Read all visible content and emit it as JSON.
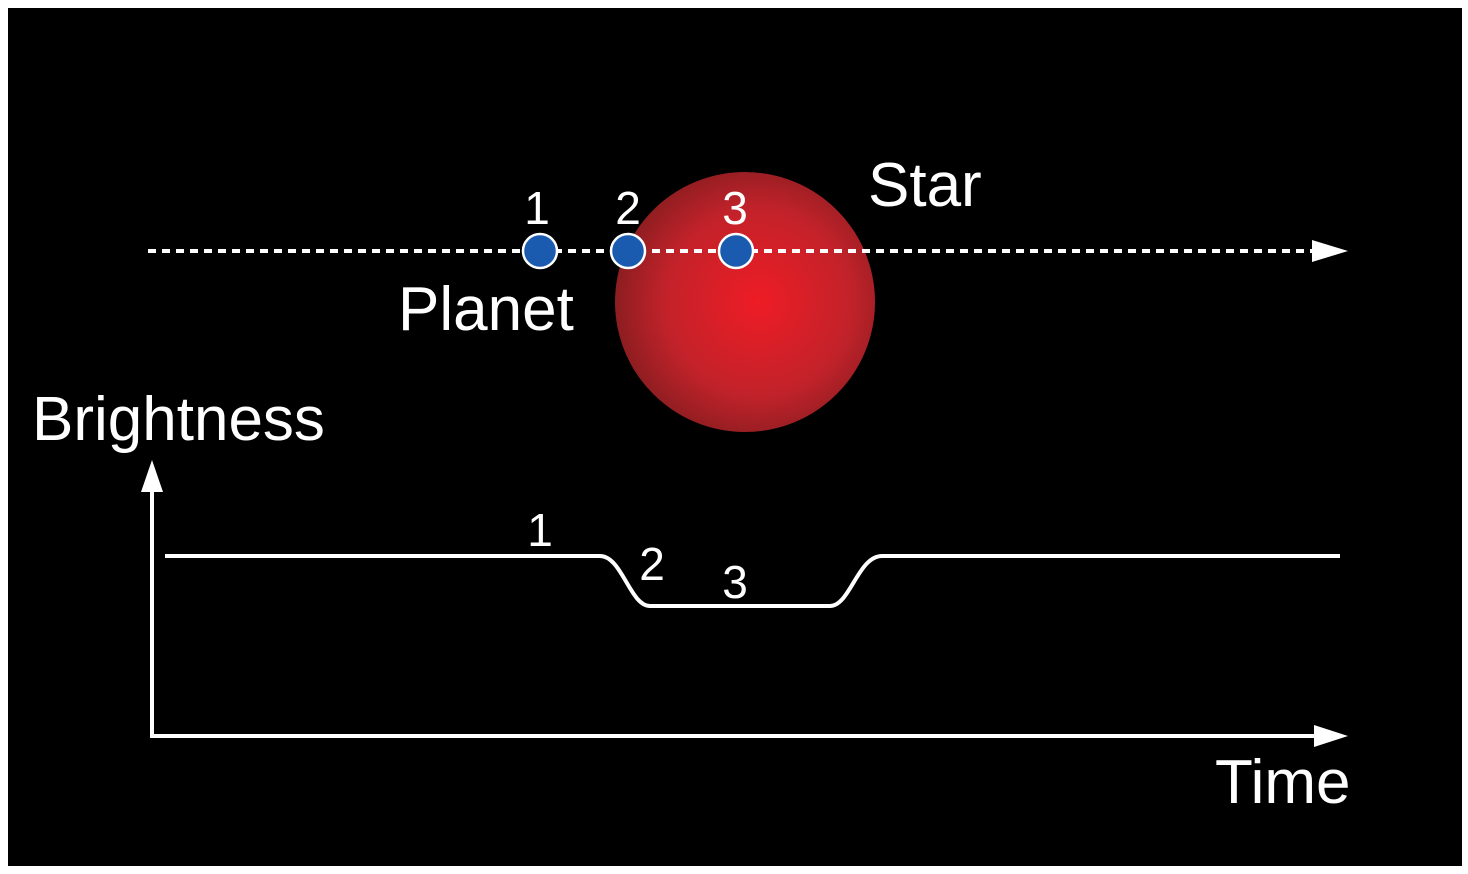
{
  "diagram": {
    "star": {
      "label": "Star"
    },
    "planet": {
      "label": "Planet",
      "positions": [
        "1",
        "2",
        "3"
      ]
    },
    "light_curve": {
      "y_axis": "Brightness",
      "x_axis": "Time",
      "points": [
        "1",
        "2",
        "3"
      ]
    }
  }
}
